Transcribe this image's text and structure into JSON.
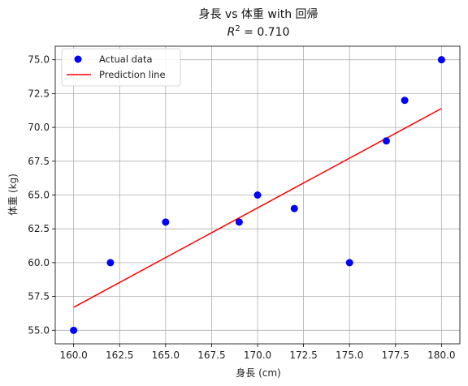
{
  "chart_data": {
    "type": "scatter",
    "title": "身長 vs 体重 with 回帰",
    "subtitle": "R² = 0.710",
    "subtitle_parts": {
      "symbol": "R",
      "exponent": "2",
      "rest": " = 0.710"
    },
    "xlabel": "身長 (cm)",
    "ylabel": "体重 (kg)",
    "xlim": [
      159,
      181
    ],
    "ylim": [
      54,
      76
    ],
    "xticks": [
      "160.0",
      "162.5",
      "165.0",
      "167.5",
      "170.0",
      "172.5",
      "175.0",
      "177.5",
      "180.0"
    ],
    "yticks": [
      "55.0",
      "57.5",
      "60.0",
      "62.5",
      "65.0",
      "67.5",
      "70.0",
      "72.5",
      "75.0"
    ],
    "grid": true,
    "legend_position": "top-left",
    "series": [
      {
        "name": "Actual data",
        "kind": "scatter",
        "color": "#0000ff",
        "x": [
          160,
          162,
          165,
          169,
          170,
          172,
          175,
          177,
          178,
          180
        ],
        "y": [
          55,
          60,
          63,
          63,
          65,
          64,
          60,
          69,
          72,
          75
        ]
      },
      {
        "name": "Prediction line",
        "kind": "line",
        "color": "#ff0000",
        "x": [
          160,
          180
        ],
        "y": [
          56.7,
          71.4
        ]
      }
    ]
  }
}
